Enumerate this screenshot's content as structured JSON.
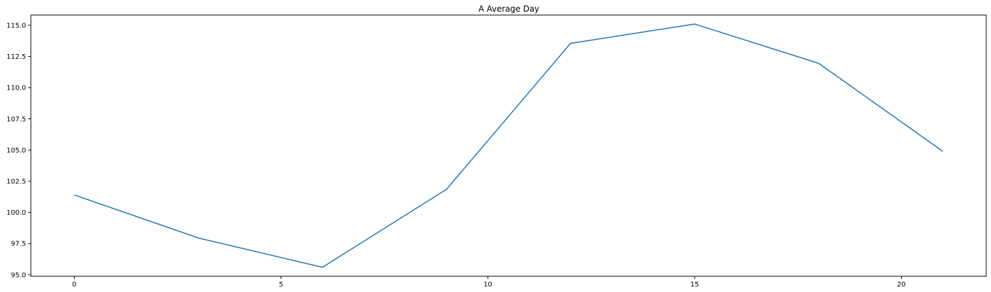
{
  "chart_data": {
    "type": "line",
    "title": "A Average Day",
    "xlabel": "",
    "ylabel": "",
    "x": [
      0,
      3,
      6,
      9,
      12,
      15,
      18,
      21
    ],
    "series": [
      {
        "values": [
          101.4,
          97.95,
          95.6,
          101.85,
          113.55,
          115.1,
          111.95,
          104.9
        ]
      }
    ],
    "xlim": [
      -1.05,
      22.05
    ],
    "ylim": [
      94.88,
      115.82
    ],
    "xticks": [
      0,
      5,
      10,
      15,
      20
    ],
    "xtick_labels": [
      "0",
      "5",
      "10",
      "15",
      "20"
    ],
    "yticks": [
      95.0,
      97.5,
      100.0,
      102.5,
      105.0,
      107.5,
      110.0,
      112.5,
      115.0
    ],
    "ytick_labels": [
      "95.0",
      "97.5",
      "100.0",
      "102.5",
      "105.0",
      "107.5",
      "110.0",
      "112.5",
      "115.0"
    ],
    "grid": false,
    "legend": "none",
    "line_color": "#1f77b4"
  }
}
